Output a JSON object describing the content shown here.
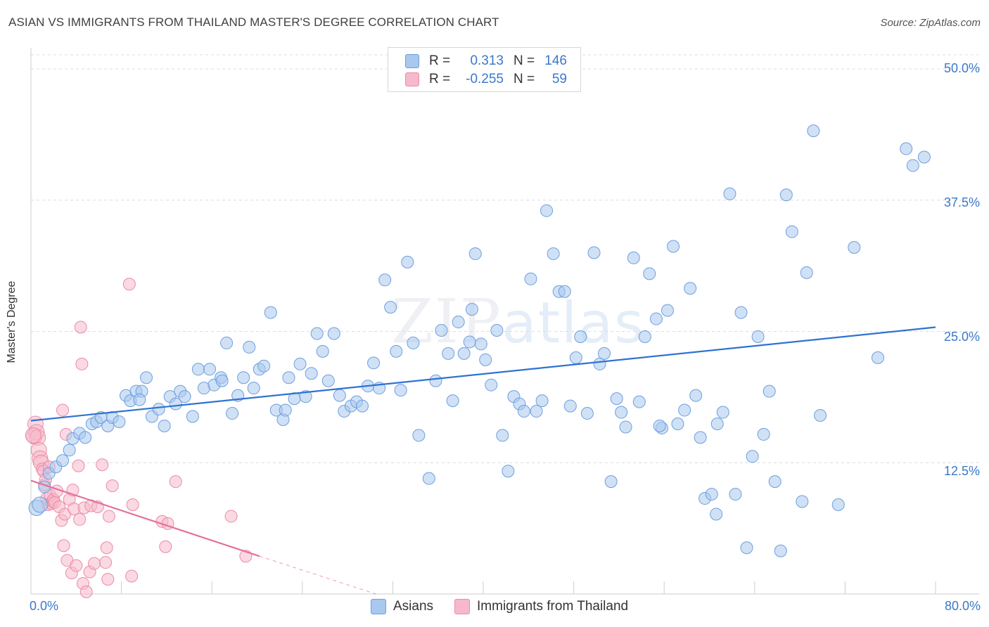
{
  "title": "ASIAN VS IMMIGRANTS FROM THAILAND MASTER'S DEGREE CORRELATION CHART",
  "source": "Source: ZipAtlas.com",
  "watermark": {
    "zip": "ZIP",
    "atlas": "atlas"
  },
  "colors": {
    "blue_fill": "#a9c8ee",
    "blue_stroke": "#6c9fdd",
    "blue_line": "#2f72d2",
    "pink_fill": "#f6b9cb",
    "pink_stroke": "#ec8aa8",
    "pink_line": "#e4719a",
    "grid": "#dcdcdc",
    "tick_text": "#3b78c9"
  },
  "legend": {
    "rows": [
      {
        "r_label": "R =",
        "r_value": "0.313",
        "n_label": "N =",
        "n_value": "146",
        "color": "#a9c8ee"
      },
      {
        "r_label": "R =",
        "r_value": "-0.255",
        "n_label": "N =",
        "n_value": "59",
        "color": "#f6b9cb"
      }
    ]
  },
  "bottom_legend": [
    {
      "label": "Asians",
      "color": "#a9c8ee"
    },
    {
      "label": "Immigrants from Thailand",
      "color": "#f6b9cb"
    }
  ],
  "chart_data": {
    "type": "scatter",
    "ylabel": "Master's Degree",
    "x_ticks": [
      "0.0%",
      "80.0%"
    ],
    "y_ticks": [
      "12.5%",
      "25.0%",
      "37.5%",
      "50.0%"
    ],
    "xlim": [
      0,
      80
    ],
    "ylim": [
      0,
      50
    ],
    "grid": true,
    "legend_position": "top-center",
    "series": [
      {
        "name": "Asians",
        "trend": {
          "x0": 0,
          "y0": 16.5,
          "x1": 80,
          "y1": 25.4
        },
        "points": [
          [
            0.5,
            8.2
          ],
          [
            0.8,
            8.5
          ],
          [
            1.2,
            10.2
          ],
          [
            1.6,
            11.5
          ],
          [
            2.2,
            12.1
          ],
          [
            2.8,
            12.7
          ],
          [
            3.4,
            13.7
          ],
          [
            3.7,
            14.8
          ],
          [
            4.3,
            15.3
          ],
          [
            4.8,
            14.9
          ],
          [
            5.4,
            16.2
          ],
          [
            5.8,
            16.4
          ],
          [
            6.2,
            16.8
          ],
          [
            6.8,
            16.0
          ],
          [
            7.2,
            16.8
          ],
          [
            7.8,
            16.4
          ],
          [
            8.4,
            18.9
          ],
          [
            8.8,
            18.4
          ],
          [
            9.3,
            19.3
          ],
          [
            9.8,
            19.3
          ],
          [
            10.2,
            20.6
          ],
          [
            10.7,
            16.9
          ],
          [
            11.3,
            17.6
          ],
          [
            11.8,
            16.0
          ],
          [
            12.3,
            18.8
          ],
          [
            12.8,
            18.1
          ],
          [
            13.2,
            19.3
          ],
          [
            13.6,
            18.8
          ],
          [
            14.3,
            16.9
          ],
          [
            14.8,
            21.4
          ],
          [
            15.3,
            19.6
          ],
          [
            15.8,
            21.4
          ],
          [
            16.2,
            19.9
          ],
          [
            16.8,
            20.6
          ],
          [
            17.3,
            23.9
          ],
          [
            17.8,
            17.2
          ],
          [
            18.3,
            18.9
          ],
          [
            18.8,
            20.6
          ],
          [
            19.3,
            23.5
          ],
          [
            19.7,
            19.6
          ],
          [
            20.2,
            21.4
          ],
          [
            20.6,
            21.7
          ],
          [
            21.2,
            26.8
          ],
          [
            21.7,
            17.5
          ],
          [
            22.3,
            16.6
          ],
          [
            22.8,
            20.6
          ],
          [
            23.3,
            18.6
          ],
          [
            23.8,
            21.9
          ],
          [
            24.3,
            18.8
          ],
          [
            24.8,
            21.0
          ],
          [
            25.3,
            24.8
          ],
          [
            25.8,
            23.1
          ],
          [
            26.3,
            20.3
          ],
          [
            26.8,
            24.8
          ],
          [
            27.3,
            18.9
          ],
          [
            27.7,
            17.4
          ],
          [
            28.3,
            17.9
          ],
          [
            28.8,
            18.3
          ],
          [
            29.3,
            17.9
          ],
          [
            29.8,
            19.8
          ],
          [
            30.3,
            22.0
          ],
          [
            30.8,
            19.6
          ],
          [
            31.3,
            29.9
          ],
          [
            31.8,
            27.3
          ],
          [
            32.3,
            23.1
          ],
          [
            32.7,
            19.4
          ],
          [
            33.3,
            31.6
          ],
          [
            33.8,
            23.9
          ],
          [
            34.3,
            15.1
          ],
          [
            35.2,
            11.0
          ],
          [
            35.8,
            20.3
          ],
          [
            36.3,
            25.1
          ],
          [
            36.9,
            22.9
          ],
          [
            37.3,
            18.4
          ],
          [
            37.8,
            25.9
          ],
          [
            38.3,
            22.9
          ],
          [
            38.8,
            24.0
          ],
          [
            39.3,
            32.4
          ],
          [
            39.8,
            23.8
          ],
          [
            40.2,
            22.3
          ],
          [
            40.7,
            19.9
          ],
          [
            41.2,
            25.1
          ],
          [
            41.7,
            15.1
          ],
          [
            42.2,
            11.7
          ],
          [
            42.7,
            18.8
          ],
          [
            43.2,
            18.1
          ],
          [
            43.6,
            17.4
          ],
          [
            44.2,
            30.0
          ],
          [
            44.7,
            17.4
          ],
          [
            45.2,
            18.4
          ],
          [
            45.6,
            36.5
          ],
          [
            46.2,
            32.4
          ],
          [
            46.7,
            28.8
          ],
          [
            47.2,
            28.8
          ],
          [
            47.7,
            17.9
          ],
          [
            48.2,
            22.5
          ],
          [
            48.6,
            24.5
          ],
          [
            49.2,
            17.2
          ],
          [
            49.8,
            32.5
          ],
          [
            50.3,
            21.9
          ],
          [
            50.7,
            22.9
          ],
          [
            51.3,
            10.7
          ],
          [
            51.8,
            18.6
          ],
          [
            52.2,
            17.3
          ],
          [
            52.6,
            15.9
          ],
          [
            53.3,
            32.0
          ],
          [
            53.8,
            18.3
          ],
          [
            54.3,
            24.5
          ],
          [
            54.7,
            30.5
          ],
          [
            55.3,
            26.2
          ],
          [
            55.8,
            15.8
          ],
          [
            56.3,
            27.0
          ],
          [
            56.8,
            33.1
          ],
          [
            57.2,
            16.2
          ],
          [
            57.8,
            17.5
          ],
          [
            58.3,
            29.1
          ],
          [
            58.8,
            18.9
          ],
          [
            59.2,
            14.9
          ],
          [
            59.6,
            9.1
          ],
          [
            60.2,
            9.5
          ],
          [
            60.7,
            16.2
          ],
          [
            61.2,
            17.3
          ],
          [
            61.8,
            38.1
          ],
          [
            62.3,
            9.5
          ],
          [
            62.8,
            26.8
          ],
          [
            63.3,
            4.4
          ],
          [
            63.8,
            13.1
          ],
          [
            64.3,
            24.5
          ],
          [
            64.8,
            15.2
          ],
          [
            65.3,
            19.3
          ],
          [
            65.8,
            10.7
          ],
          [
            66.3,
            4.1
          ],
          [
            66.8,
            38.0
          ],
          [
            67.3,
            34.5
          ],
          [
            68.2,
            8.8
          ],
          [
            68.6,
            30.6
          ],
          [
            69.2,
            44.1
          ],
          [
            69.8,
            17.0
          ],
          [
            71.4,
            8.5
          ],
          [
            72.8,
            33.0
          ],
          [
            74.9,
            22.5
          ],
          [
            77.4,
            42.4
          ],
          [
            78.0,
            40.8
          ],
          [
            79.0,
            41.6
          ],
          [
            60.6,
            7.6
          ],
          [
            55.6,
            16.0
          ],
          [
            39.0,
            27.1
          ],
          [
            22.5,
            17.5
          ],
          [
            16.9,
            20.3
          ],
          [
            9.6,
            18.5
          ]
        ]
      },
      {
        "name": "Immigrants from Thailand",
        "trend": {
          "x0": 0,
          "y0": 10.8,
          "x1": 20.2,
          "y1": 3.6,
          "dash_to_x": 30.5,
          "dash_to_y": 0
        },
        "points": [
          [
            0.3,
            15.0
          ],
          [
            0.4,
            16.2
          ],
          [
            0.5,
            15.4
          ],
          [
            0.6,
            14.9
          ],
          [
            0.7,
            13.7
          ],
          [
            0.8,
            12.9
          ],
          [
            0.9,
            12.5
          ],
          [
            1.0,
            11.9
          ],
          [
            1.1,
            11.7
          ],
          [
            1.2,
            10.4
          ],
          [
            1.3,
            10.9
          ],
          [
            1.4,
            9.1
          ],
          [
            1.5,
            8.5
          ],
          [
            1.6,
            12.1
          ],
          [
            1.7,
            9.4
          ],
          [
            1.8,
            8.6
          ],
          [
            1.9,
            8.8
          ],
          [
            2.0,
            9.0
          ],
          [
            2.1,
            8.7
          ],
          [
            2.3,
            9.8
          ],
          [
            2.5,
            8.3
          ],
          [
            2.7,
            7.0
          ],
          [
            2.8,
            17.5
          ],
          [
            2.9,
            4.6
          ],
          [
            3.0,
            7.6
          ],
          [
            3.1,
            15.2
          ],
          [
            3.2,
            3.2
          ],
          [
            3.4,
            9.0
          ],
          [
            3.6,
            2.0
          ],
          [
            3.7,
            9.9
          ],
          [
            3.8,
            8.1
          ],
          [
            4.0,
            2.7
          ],
          [
            4.2,
            12.2
          ],
          [
            4.3,
            7.1
          ],
          [
            4.4,
            25.4
          ],
          [
            4.5,
            21.9
          ],
          [
            4.6,
            1.0
          ],
          [
            4.7,
            8.2
          ],
          [
            4.9,
            0.2
          ],
          [
            5.2,
            2.1
          ],
          [
            5.3,
            8.4
          ],
          [
            5.6,
            2.9
          ],
          [
            5.9,
            8.3
          ],
          [
            6.3,
            12.3
          ],
          [
            6.6,
            3.0
          ],
          [
            6.7,
            4.4
          ],
          [
            6.8,
            1.4
          ],
          [
            6.9,
            7.4
          ],
          [
            7.2,
            10.3
          ],
          [
            8.7,
            29.5
          ],
          [
            8.9,
            1.7
          ],
          [
            9.0,
            8.5
          ],
          [
            11.6,
            6.9
          ],
          [
            11.9,
            4.5
          ],
          [
            12.1,
            6.7
          ],
          [
            12.8,
            10.7
          ],
          [
            17.7,
            7.4
          ],
          [
            19.0,
            3.6
          ],
          [
            0.2,
            15.1
          ]
        ]
      }
    ]
  }
}
